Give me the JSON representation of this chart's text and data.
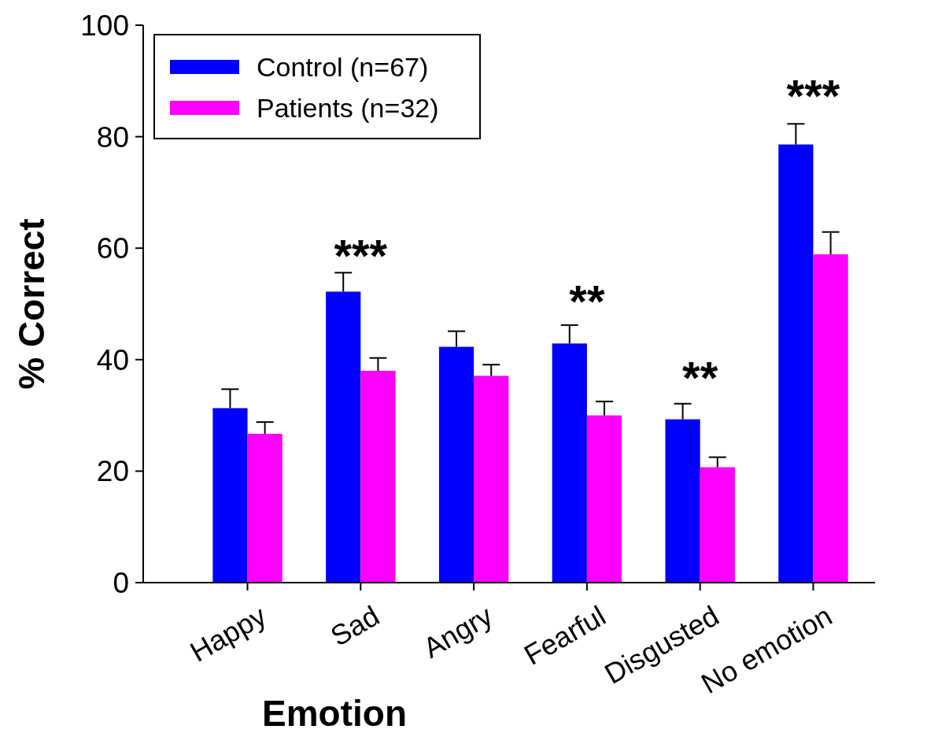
{
  "chart_data": {
    "type": "bar",
    "xlabel": "Emotion",
    "ylabel": "% Correct",
    "categories": [
      "Happy",
      "Sad",
      "Angry",
      "Fearful",
      "Disgusted",
      "No emotion"
    ],
    "series": [
      {
        "name": "Control (n=67)",
        "color": "#0000ff",
        "values": [
          31.3,
          52.2,
          42.3,
          42.9,
          29.3,
          78.6
        ],
        "errors": [
          [
            31.3,
            34.7
          ],
          [
            52.2,
            55.6
          ],
          [
            42.3,
            45.1
          ],
          [
            42.9,
            46.2
          ],
          [
            29.3,
            32.1
          ],
          [
            78.6,
            82.3
          ]
        ]
      },
      {
        "name": "Patients (n=32)",
        "color": "#ff00ff",
        "values": [
          26.7,
          38.0,
          37.1,
          30.0,
          20.7,
          58.9
        ],
        "errors": [
          [
            26.7,
            28.8
          ],
          [
            38.0,
            40.3
          ],
          [
            37.1,
            39.1
          ],
          [
            30.0,
            32.5
          ],
          [
            20.7,
            22.5
          ],
          [
            58.9,
            62.9
          ]
        ]
      }
    ],
    "ylim": [
      0,
      100
    ],
    "yticks": [
      0,
      20,
      40,
      60,
      80,
      100
    ],
    "grid": false,
    "legend": "top left",
    "annotations": [
      "***",
      "**",
      "**",
      "***"
    ]
  }
}
